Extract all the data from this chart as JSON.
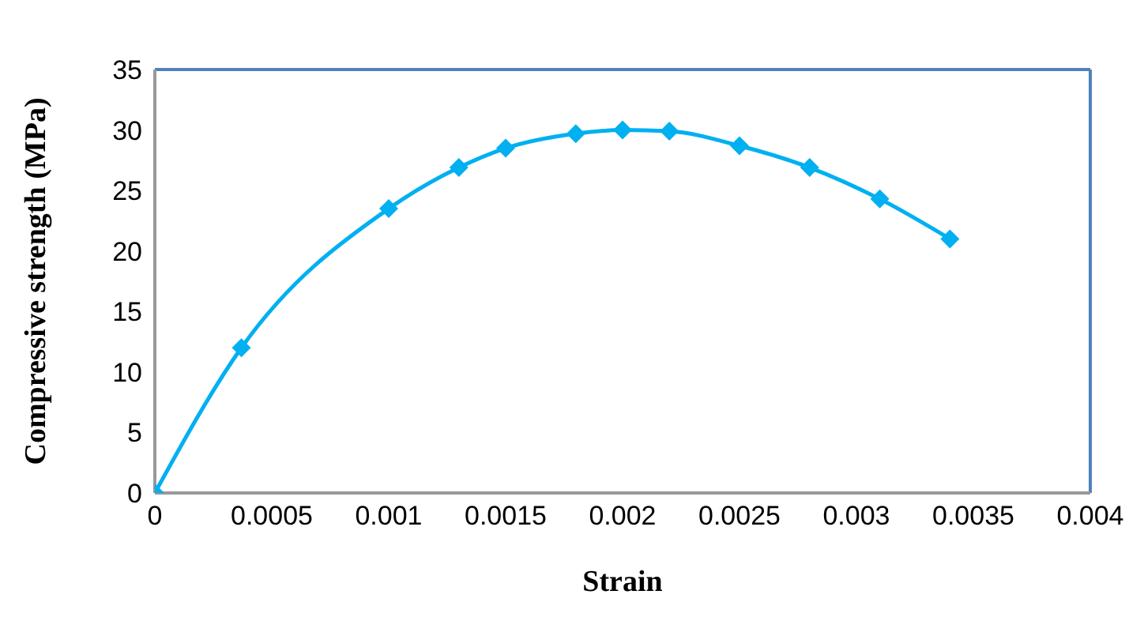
{
  "chart_data": {
    "type": "line",
    "xlabel": "Strain",
    "ylabel": "Compressive strength (MPa)",
    "x": [
      0,
      0.00037,
      0.001,
      0.0013,
      0.0015,
      0.0018,
      0.002,
      0.0022,
      0.0025,
      0.0028,
      0.0031,
      0.0034
    ],
    "series": [
      {
        "color": "#00b0f0",
        "values": [
          0,
          12,
          23.5,
          26.9,
          28.5,
          29.7,
          30,
          29.9,
          28.7,
          26.9,
          24.3,
          21
        ]
      }
    ],
    "xlim": [
      0,
      0.004
    ],
    "xticks": [
      0,
      0.0005,
      0.001,
      0.0015,
      0.002,
      0.0025,
      0.003,
      0.0035,
      0.004
    ],
    "ylim": [
      0,
      35
    ],
    "yticks": [
      0,
      5,
      10,
      15,
      20,
      25,
      30,
      35
    ],
    "grid": false,
    "legend": false,
    "marker": "diamond",
    "line_style": "solid"
  }
}
